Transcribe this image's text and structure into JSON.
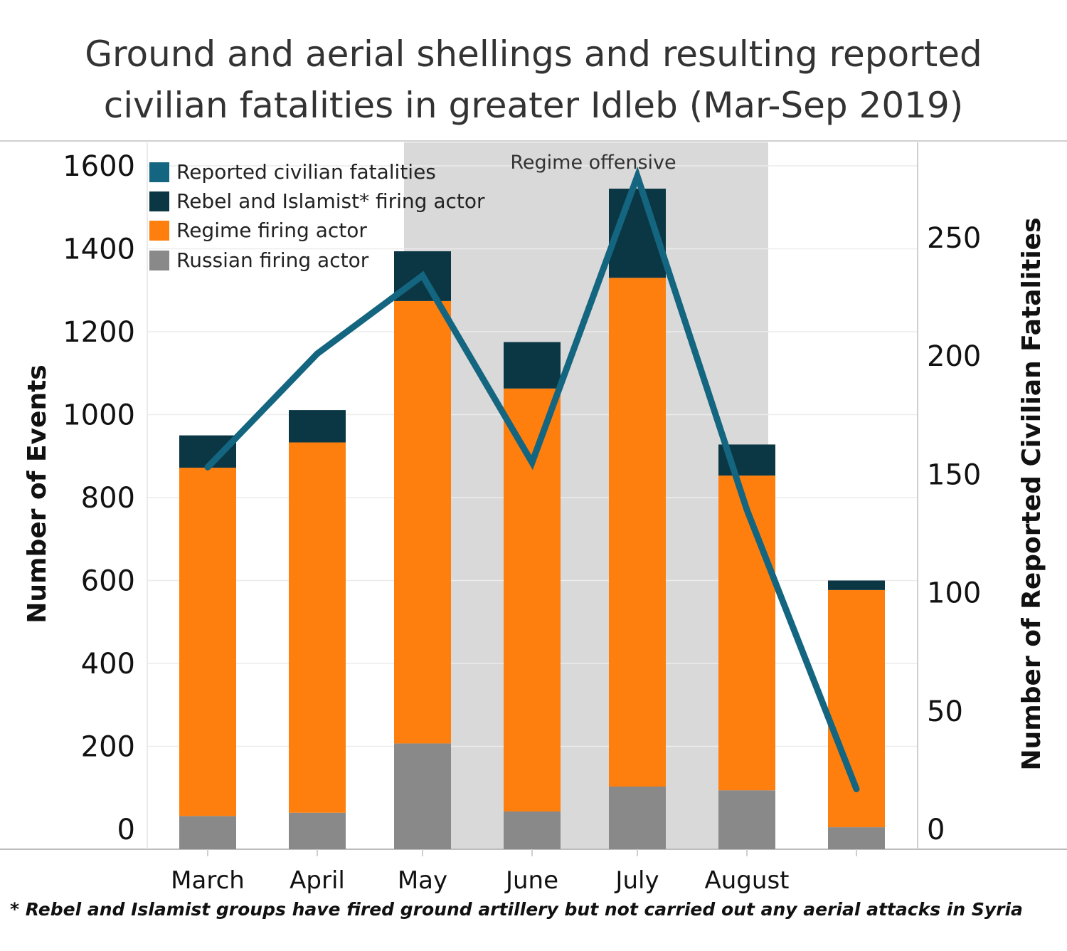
{
  "title_lines": [
    "Ground and aerial shellings and resulting reported",
    "civilian fatalities in greater Idleb (Mar-Sep 2019)"
  ],
  "footnote": "* Rebel and Islamist groups have fired ground artillery but not carried out any aerial attacks in Syria",
  "colors": {
    "fatalities": "#136580",
    "rebel": "#0b3745",
    "regime": "#ff7f0e",
    "russian": "#898989",
    "shade": "#d9d9d9",
    "grid": "#ececec"
  },
  "chart_data": {
    "type": "bar",
    "stacked": true,
    "categories": [
      "March",
      "April",
      "May",
      "June",
      "July",
      "August",
      ""
    ],
    "series": [
      {
        "name": "Russian firing actor",
        "axis": "left",
        "values": [
          32,
          40,
          207,
          43,
          103,
          94,
          5
        ]
      },
      {
        "name": "Regime firing actor",
        "axis": "left",
        "values": [
          840,
          893,
          1067,
          1020,
          1227,
          759,
          572
        ]
      },
      {
        "name": "Rebel and Islamist* firing actor",
        "axis": "left",
        "values": [
          78,
          78,
          120,
          112,
          215,
          75,
          23
        ]
      },
      {
        "name": "Reported civilian fatalities",
        "axis": "right",
        "type": "line",
        "values": [
          153,
          201,
          234,
          155,
          276,
          135,
          17
        ]
      }
    ],
    "legend_order": [
      "Reported civilian fatalities",
      "Rebel and Islamist* firing actor",
      "Regime firing actor",
      "Russian firing actor"
    ],
    "legend_position": "top-left",
    "ylabel": "Number of Events",
    "y2label": "Number of Reported Civilian Fatalities",
    "ylim": [
      0,
      1600
    ],
    "y2lim": [
      0,
      280
    ],
    "yticks": [
      0,
      200,
      400,
      600,
      800,
      1000,
      1200,
      1400,
      1600
    ],
    "y2ticks": [
      0,
      50,
      100,
      150,
      200,
      250
    ],
    "annotation": {
      "text": "Regime offensive",
      "from": "May",
      "to": "August"
    },
    "grid": true
  }
}
